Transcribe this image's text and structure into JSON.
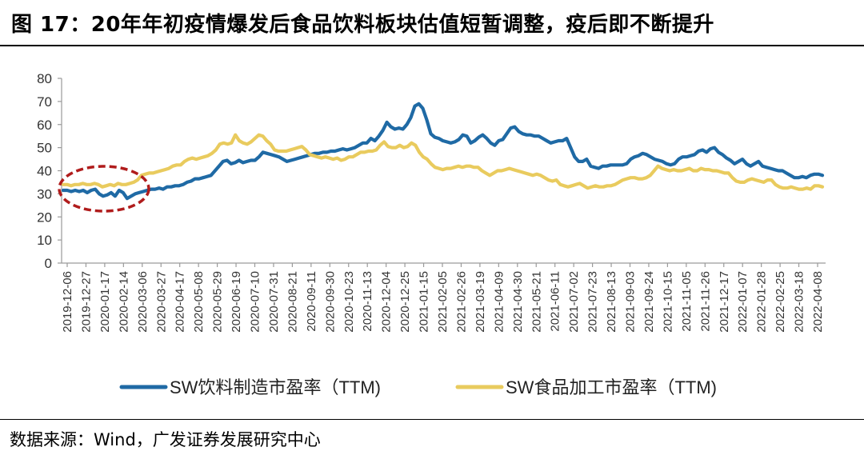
{
  "title": "图 17：20年年初疫情爆发后食品饮料板块估值短暂调整，疫后即不断提升",
  "source": "数据来源：Wind，广发证券发展研究中心",
  "colors": {
    "beverage": "#1F6AA5",
    "food": "#E9CB5E",
    "ellipse": "#B01C1C",
    "axis": "#9A9A9A"
  },
  "chart_data": {
    "type": "line",
    "title": "20年年初疫情爆发后食品饮料板块估值短暂调整，疫后即不断提升",
    "xlabel": "",
    "ylabel": "",
    "ylim": [
      0,
      80
    ],
    "yticks": [
      0,
      10,
      20,
      30,
      40,
      50,
      60,
      70,
      80
    ],
    "xtick_labels": [
      "2019-12-06",
      "2019-12-27",
      "2020-01-17",
      "2020-02-14",
      "2020-03-06",
      "2020-03-27",
      "2020-04-17",
      "2020-05-08",
      "2020-05-29",
      "2020-06-19",
      "2020-07-10",
      "2020-07-31",
      "2020-08-21",
      "2020-09-11",
      "2020-09-30",
      "2020-10-23",
      "2020-11-13",
      "2020-12-04",
      "2020-12-25",
      "2021-01-15",
      "2021-02-05",
      "2021-02-26",
      "2021-03-19",
      "2021-04-09",
      "2021-04-30",
      "2021-05-21",
      "2021-06-11",
      "2021-07-02",
      "2021-07-23",
      "2021-08-13",
      "2021-09-03",
      "2021-09-24",
      "2021-10-15",
      "2021-11-05",
      "2021-11-26",
      "2021-12-17",
      "2022-01-07",
      "2022-01-28",
      "2022-02-25",
      "2022-03-18",
      "2022-04-08"
    ],
    "legend_position": "bottom",
    "annotation": "dashed ellipse highlighting Dec 2019 – Mar 2020 dip",
    "series": [
      {
        "name": "SW饮料制造市盈率（TTM)",
        "color": "#1F6AA5",
        "values": [
          31.5,
          31.5,
          31,
          31.5,
          31,
          31.5,
          30.5,
          31.5,
          32,
          30,
          29,
          29.5,
          30.5,
          29,
          31.5,
          30.5,
          28,
          29,
          30,
          30.5,
          31,
          31.5,
          32,
          32,
          32.5,
          32,
          33,
          33,
          33.5,
          33.5,
          34,
          35,
          35.5,
          36.5,
          36.5,
          37,
          37.5,
          38,
          40,
          42,
          44,
          44.5,
          43,
          43.5,
          44.5,
          43.5,
          44,
          44.5,
          44.5,
          46,
          48,
          47.5,
          47,
          46.5,
          46,
          45,
          44,
          44.5,
          45,
          45.5,
          46,
          46.5,
          47,
          47.5,
          47.5,
          48,
          48,
          48.5,
          48.5,
          49,
          49.5,
          49,
          49.5,
          50,
          51,
          52,
          52,
          54,
          53,
          55,
          57.5,
          61,
          59,
          58,
          58.5,
          58,
          60,
          63,
          68,
          69,
          67,
          62,
          56,
          54.5,
          54,
          53,
          52.5,
          52,
          52.5,
          53.5,
          55.5,
          55,
          52,
          53,
          54.5,
          55.5,
          54,
          52,
          51,
          53,
          53.5,
          56,
          58.5,
          59,
          57,
          56,
          55.5,
          55.5,
          55,
          55,
          54,
          53,
          52,
          52.5,
          53,
          53,
          54,
          50,
          46,
          44,
          44,
          45,
          42,
          41.5,
          41,
          42,
          42,
          42.5,
          42.5,
          42.5,
          42.5,
          43,
          45,
          46,
          46.5,
          47.5,
          47,
          46,
          45,
          44.5,
          44,
          43,
          42.5,
          43,
          45,
          46,
          46,
          46.5,
          47,
          48.5,
          49,
          48,
          49.5,
          50,
          48,
          47,
          45.5,
          44.5,
          43,
          44,
          45,
          43,
          42,
          43,
          44,
          42,
          41.5,
          41,
          40.5,
          40,
          40,
          39,
          38,
          37,
          37,
          37.5,
          37,
          38,
          38.5,
          38.5,
          38
        ]
      },
      {
        "name": "SW食品加工市盈率（TTM)",
        "color": "#E9CB5E",
        "values": [
          34,
          34,
          33.5,
          34,
          34,
          34.5,
          34,
          34,
          34.5,
          34,
          33,
          33.5,
          34,
          33.5,
          34.5,
          34,
          34,
          34.5,
          35,
          36,
          38,
          38.5,
          39,
          39,
          39.5,
          40,
          40.5,
          41,
          42,
          42.5,
          42.5,
          44,
          45,
          45.5,
          45,
          45.5,
          46,
          46.5,
          47.5,
          49,
          51.5,
          52,
          51.5,
          52,
          55.5,
          53,
          52,
          51.5,
          52.5,
          54,
          55.5,
          55,
          53,
          51.5,
          49,
          48.5,
          48.5,
          48.5,
          49,
          49.5,
          50,
          50.5,
          49,
          47,
          46.5,
          46,
          45.5,
          46,
          45.5,
          45,
          45.5,
          44.5,
          45,
          46,
          46,
          47,
          48,
          48,
          48.5,
          48.5,
          49,
          51,
          52.5,
          50.5,
          50,
          50,
          51,
          50,
          50.5,
          52,
          51,
          48,
          46,
          45,
          43,
          41.5,
          41,
          40.5,
          41,
          41,
          41.5,
          42,
          41.5,
          42,
          42,
          41.5,
          41.5,
          40,
          39,
          38,
          39,
          40,
          40,
          40.5,
          41,
          40.5,
          40,
          39.5,
          39,
          38.5,
          38,
          38.5,
          38,
          37,
          36,
          35.5,
          36,
          34,
          33.5,
          33,
          33.5,
          34,
          34.5,
          33.5,
          32.5,
          33,
          33.5,
          33,
          33,
          33.5,
          33.5,
          34,
          35,
          36,
          36.5,
          37,
          37,
          36.5,
          36.5,
          37,
          38,
          40,
          42,
          41,
          40.5,
          40,
          40.5,
          40,
          40,
          40.5,
          41,
          40,
          40,
          41,
          40.5,
          40.5,
          40,
          40,
          39.5,
          39,
          39,
          37,
          35.5,
          35,
          35,
          36,
          36.5,
          36,
          35.5,
          35,
          36,
          36,
          34,
          33,
          32.5,
          32.5,
          33,
          32.5,
          32,
          32,
          32.5,
          32,
          33.5,
          33.5,
          33
        ]
      }
    ]
  }
}
